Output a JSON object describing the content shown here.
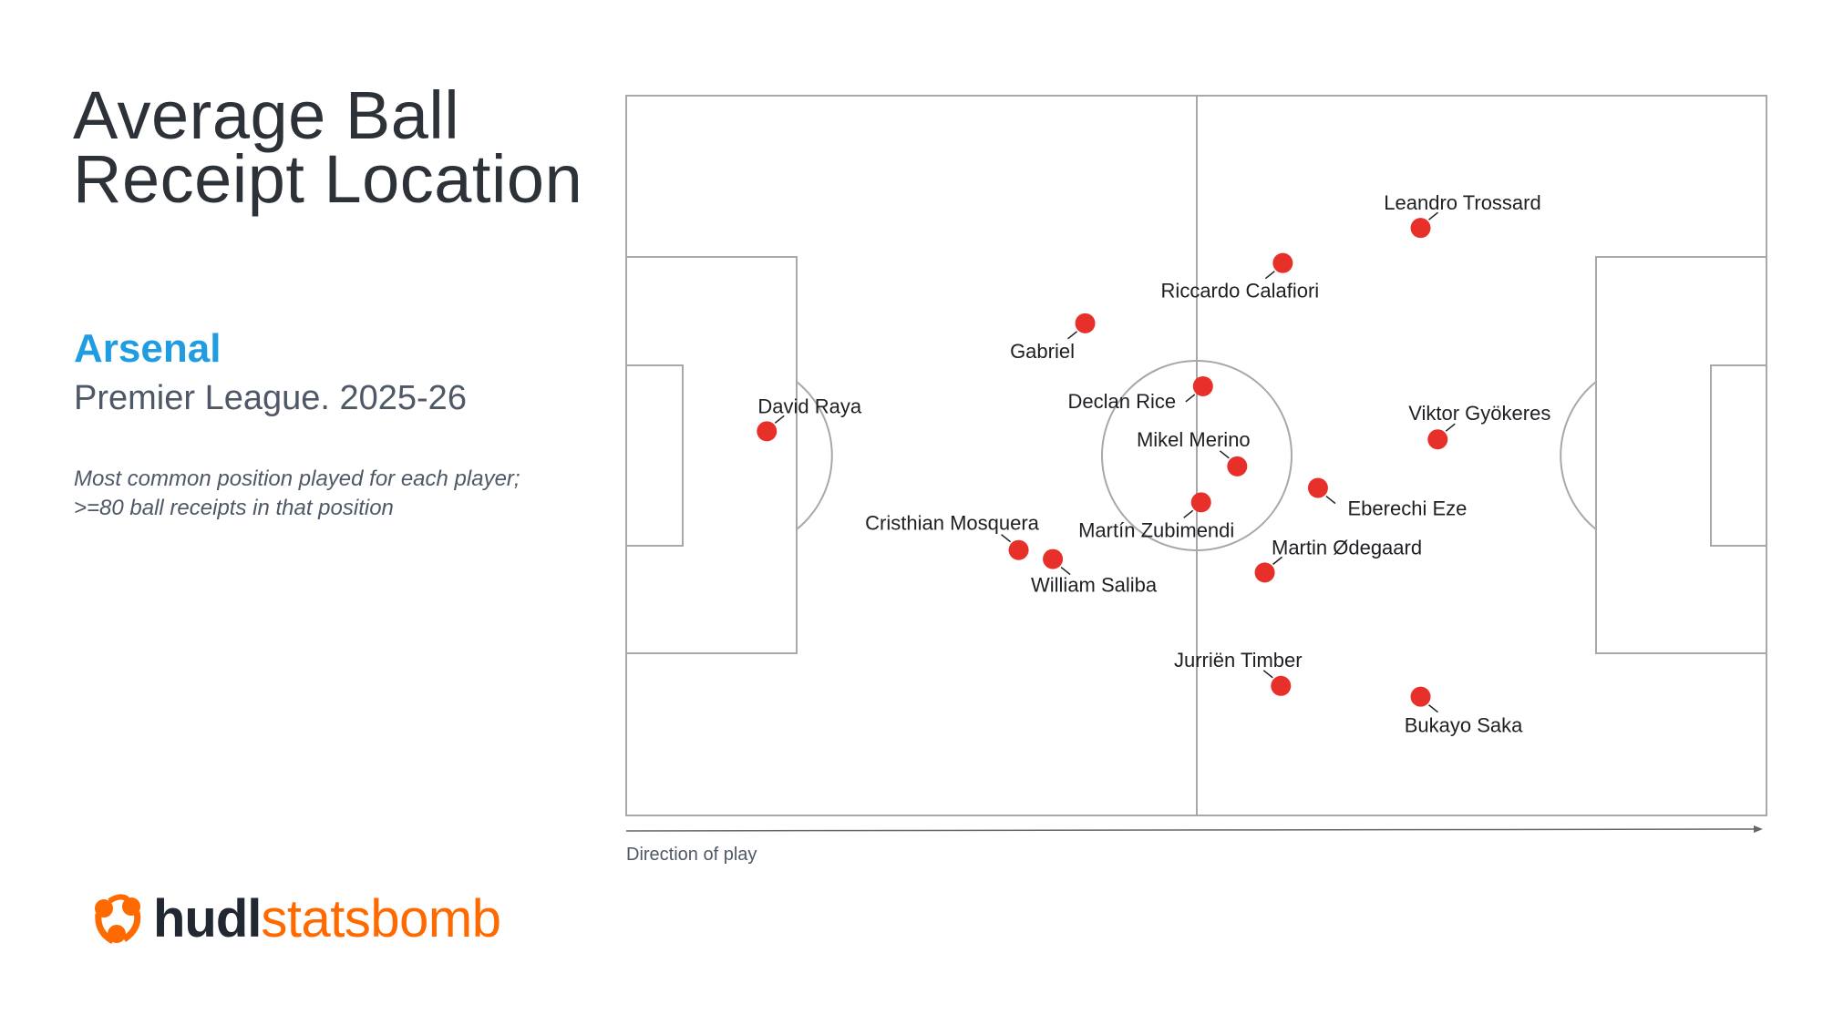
{
  "header": {
    "title_line1": "Average Ball",
    "title_line2": "Receipt Location",
    "team": "Arsenal",
    "competition": "Premier League. 2025-26",
    "note_line1": "Most common position played for each player;",
    "note_line2": ">=80 ball receipts in that position"
  },
  "footer": {
    "direction_label": "Direction of play",
    "logo_text_1": "hudl",
    "logo_text_2": "statsbomb"
  },
  "colors": {
    "dot": "#e8302a",
    "team": "#1f9de0",
    "logo_orange": "#ff6a00",
    "pitch_lines": "#a8a8a8"
  },
  "chart_data": {
    "type": "scatter",
    "title": "Average Ball Receipt Location",
    "pitch": {
      "length": 120,
      "width": 80,
      "direction": "left-to-right"
    },
    "points": [
      {
        "name": "David Raya",
        "x": 14.8,
        "y": 37.3
      },
      {
        "name": "Gabriel",
        "x": 48.3,
        "y": 25.3
      },
      {
        "name": "Riccardo Calafiori",
        "x": 69.1,
        "y": 18.6
      },
      {
        "name": "Leandro Trossard",
        "x": 83.6,
        "y": 14.7
      },
      {
        "name": "Declan Rice",
        "x": 60.7,
        "y": 32.3
      },
      {
        "name": "Mikel Merino",
        "x": 64.3,
        "y": 41.2
      },
      {
        "name": "Martín Zubimendi",
        "x": 60.5,
        "y": 45.2
      },
      {
        "name": "Eberechi Eze",
        "x": 72.8,
        "y": 43.6
      },
      {
        "name": "Viktor Gyökeres",
        "x": 85.4,
        "y": 38.2
      },
      {
        "name": "Cristhian Mosquera",
        "x": 41.3,
        "y": 50.5
      },
      {
        "name": "William Saliba",
        "x": 44.9,
        "y": 51.5
      },
      {
        "name": "Martin Ødegaard",
        "x": 67.2,
        "y": 53.0
      },
      {
        "name": "Jurriën Timber",
        "x": 68.9,
        "y": 65.6
      },
      {
        "name": "Bukayo Saka",
        "x": 83.6,
        "y": 66.8
      }
    ]
  }
}
